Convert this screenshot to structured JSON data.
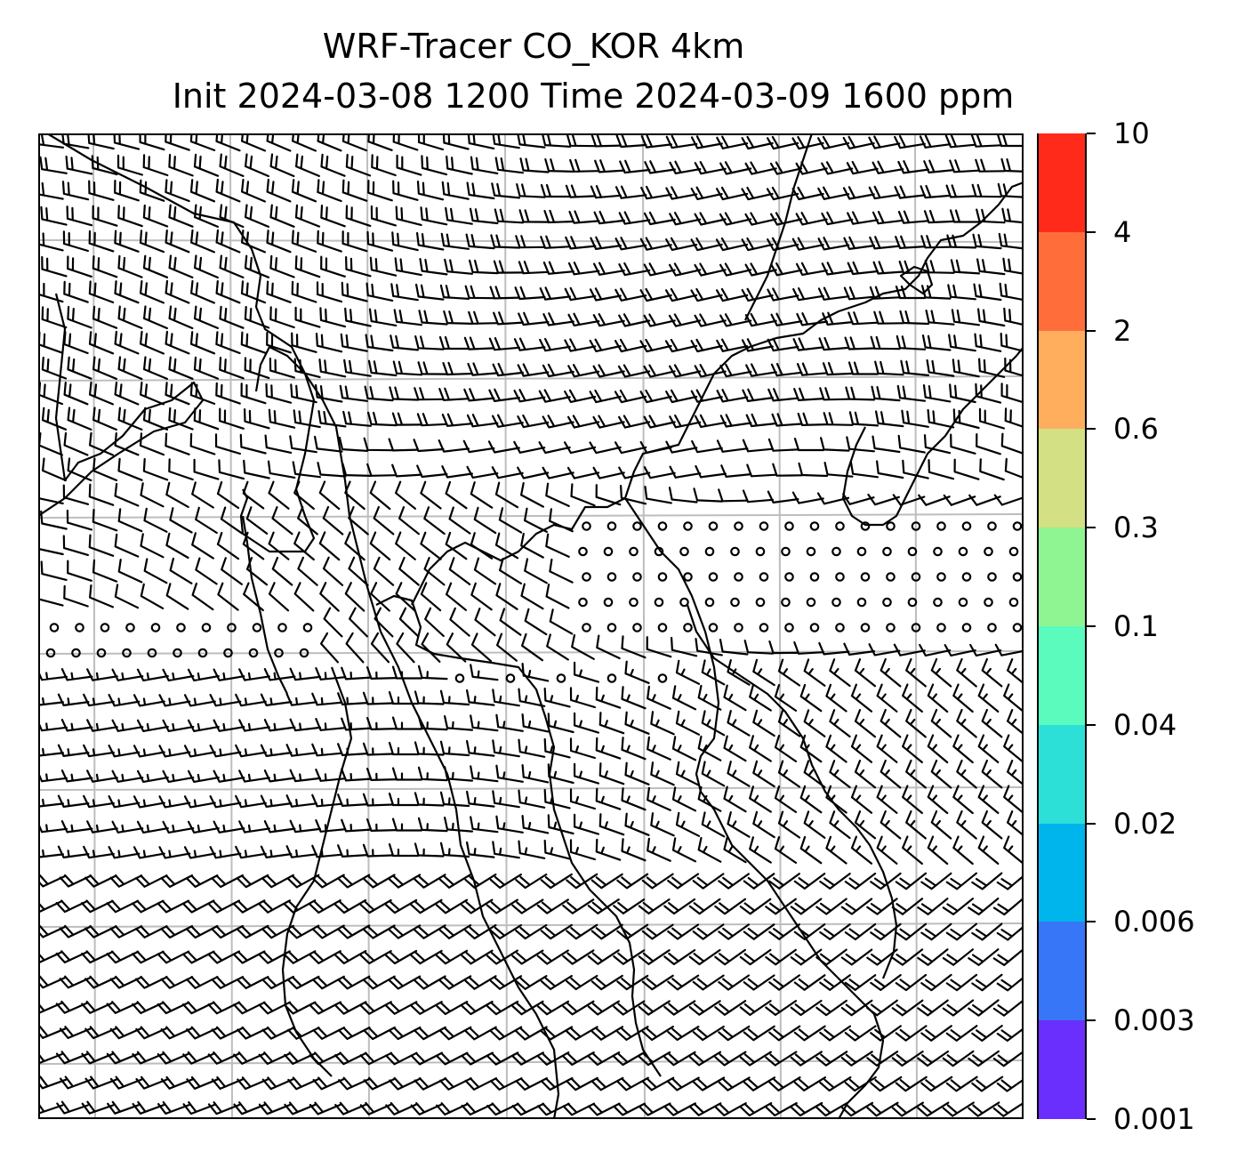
{
  "title": {
    "line1": "WRF-Tracer CO_KOR 4km",
    "line2": "Init 2024-03-08 1200 Time 2024-03-09 1600 ppm"
  },
  "colorbar": {
    "levels": [
      "10",
      "4",
      "2",
      "0.6",
      "0.3",
      "0.1",
      "0.04",
      "0.02",
      "0.006",
      "0.003",
      "0.001"
    ],
    "colors": [
      "#ff2a1a",
      "#ff6e3a",
      "#ffae5e",
      "#d3e083",
      "#8ef592",
      "#5afbbd",
      "#2ce0d8",
      "#00b4ec",
      "#3777f7",
      "#6a2efd"
    ]
  },
  "map": {
    "features": [
      "coastlines",
      "lat-lon-gridlines",
      "wind-barbs",
      "calm-wind-circles"
    ]
  }
}
